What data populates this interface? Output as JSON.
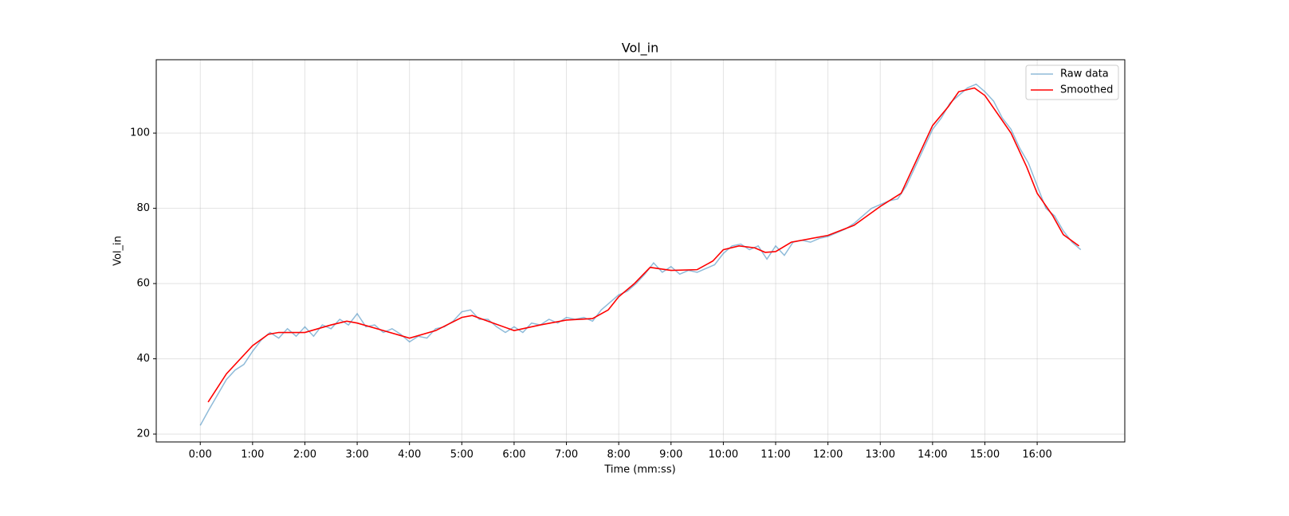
{
  "chart_data": {
    "type": "line",
    "title": "Vol_in",
    "x_label": "Time (mm:ss)",
    "y_label": "Vol_in",
    "xlim": [
      -50.5,
      1060.5
    ],
    "ylim": [
      17.9,
      119.5
    ],
    "xticks": [
      {
        "value": 0,
        "label": "0:00"
      },
      {
        "value": 60,
        "label": "1:00"
      },
      {
        "value": 120,
        "label": "2:00"
      },
      {
        "value": 180,
        "label": "3:00"
      },
      {
        "value": 240,
        "label": "4:00"
      },
      {
        "value": 300,
        "label": "5:00"
      },
      {
        "value": 360,
        "label": "6:00"
      },
      {
        "value": 420,
        "label": "7:00"
      },
      {
        "value": 480,
        "label": "8:00"
      },
      {
        "value": 540,
        "label": "9:00"
      },
      {
        "value": 600,
        "label": "10:00"
      },
      {
        "value": 660,
        "label": "11:00"
      },
      {
        "value": 720,
        "label": "12:00"
      },
      {
        "value": 780,
        "label": "13:00"
      },
      {
        "value": 840,
        "label": "14:00"
      },
      {
        "value": 900,
        "label": "15:00"
      },
      {
        "value": 960,
        "label": "16:00"
      }
    ],
    "yticks": [
      20,
      40,
      60,
      80,
      100
    ],
    "grid": true,
    "legend": "upper right",
    "series": [
      {
        "name": "Raw data",
        "color": "#1f77b4",
        "opacity": 0.5,
        "x": [
          0,
          10,
          20,
          30,
          40,
          50,
          60,
          70,
          80,
          90,
          100,
          110,
          120,
          130,
          140,
          150,
          160,
          170,
          180,
          190,
          200,
          210,
          220,
          230,
          240,
          250,
          260,
          270,
          280,
          290,
          300,
          310,
          320,
          330,
          340,
          350,
          360,
          370,
          380,
          390,
          400,
          410,
          420,
          430,
          440,
          450,
          460,
          470,
          480,
          490,
          500,
          510,
          520,
          530,
          540,
          550,
          560,
          570,
          580,
          590,
          600,
          610,
          620,
          630,
          640,
          650,
          660,
          670,
          680,
          690,
          700,
          710,
          720,
          730,
          740,
          750,
          760,
          770,
          780,
          790,
          800,
          810,
          820,
          830,
          840,
          850,
          860,
          870,
          880,
          890,
          900,
          910,
          920,
          930,
          940,
          950,
          960,
          970,
          980,
          990,
          1000,
          1010
        ],
        "values": [
          22.3,
          26.5,
          30.5,
          34.5,
          37,
          38.5,
          42,
          45,
          47,
          45.5,
          48,
          46,
          48.5,
          46,
          49,
          48,
          50.5,
          49,
          52,
          48.5,
          49,
          47,
          48,
          46.5,
          44.5,
          46,
          45.5,
          48,
          48.5,
          50,
          52.5,
          53,
          50.5,
          50.5,
          48.5,
          47,
          48.5,
          47,
          49.5,
          49,
          50.5,
          49.5,
          51,
          50.5,
          51,
          50,
          53,
          55,
          57,
          58,
          60,
          62.5,
          65.5,
          63,
          64.5,
          62.5,
          63.5,
          63,
          64,
          65,
          68,
          70,
          70.5,
          69,
          70,
          66.5,
          70,
          67.5,
          71,
          71.5,
          71,
          72,
          72.5,
          73.5,
          74.5,
          76,
          78,
          80,
          81,
          82,
          82.5,
          86,
          91,
          96,
          101,
          104,
          108,
          110,
          112,
          113,
          111,
          108.5,
          104,
          101,
          96,
          92,
          86,
          80,
          78,
          74,
          71,
          69
        ]
      },
      {
        "name": "Smoothed",
        "color": "#ff0000",
        "x": [
          9,
          30,
          60,
          78,
          90,
          120,
          150,
          168,
          180,
          210,
          240,
          270,
          300,
          312,
          330,
          360,
          390,
          420,
          450,
          468,
          480,
          498,
          516,
          540,
          570,
          588,
          600,
          618,
          636,
          648,
          660,
          678,
          720,
          750,
          780,
          804,
          822,
          840,
          858,
          870,
          888,
          900,
          930,
          948,
          960,
          978,
          990,
          1008
        ],
        "values": [
          28.5,
          36,
          43.5,
          46.5,
          47,
          47,
          49,
          50,
          49.5,
          47.5,
          45.5,
          47.5,
          51,
          51.5,
          50,
          47.5,
          49,
          50.3,
          50.7,
          53,
          56.5,
          60,
          64.3,
          63.5,
          63.7,
          66,
          69,
          70,
          69.5,
          68.3,
          68.5,
          71,
          72.8,
          75.5,
          80.5,
          84,
          93,
          102,
          107,
          111,
          112,
          110,
          100,
          91,
          84,
          78,
          73,
          70
        ]
      }
    ]
  }
}
